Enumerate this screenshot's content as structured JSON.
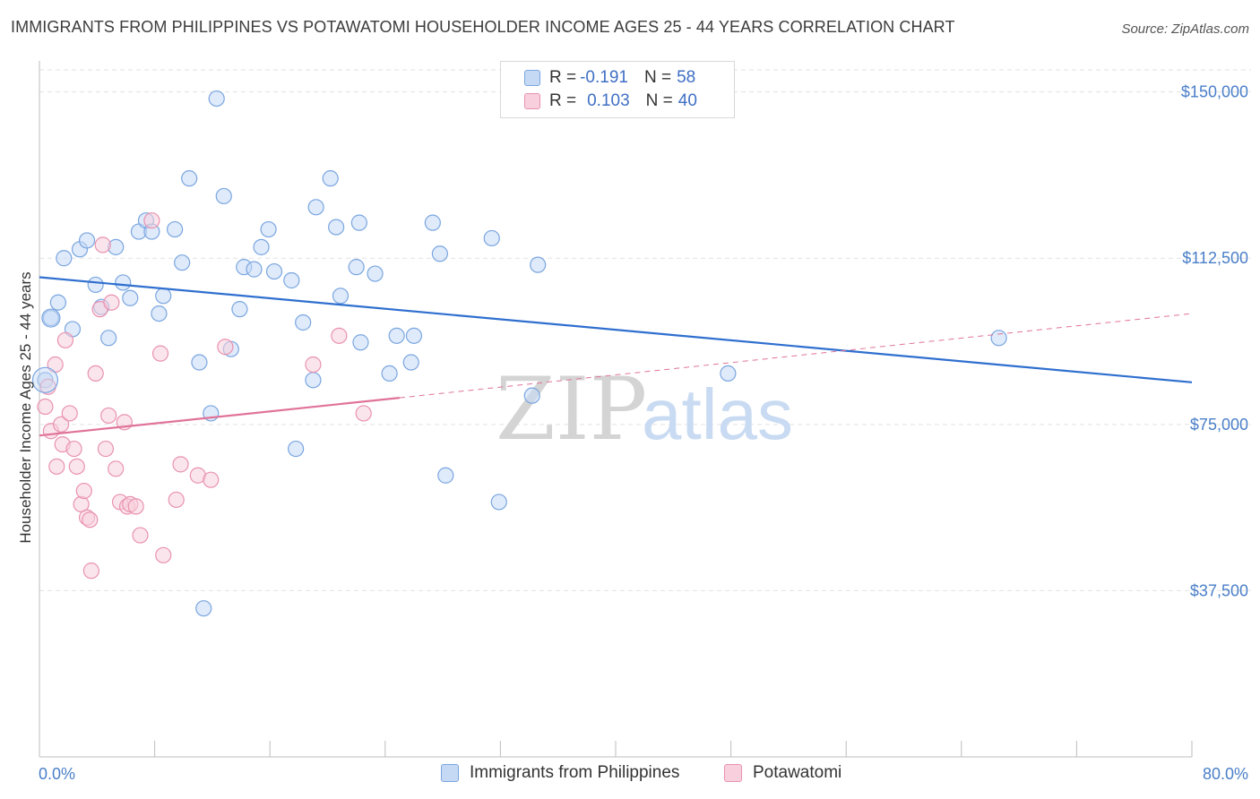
{
  "title": "IMMIGRANTS FROM PHILIPPINES VS POTAWATOMI HOUSEHOLDER INCOME AGES 25 - 44 YEARS CORRELATION CHART",
  "source": "Source: ZipAtlas.com",
  "watermark": {
    "zip": "ZIP",
    "atlas": "atlas"
  },
  "legend": {
    "r_label": "R =",
    "n_label": "N =",
    "series": [
      {
        "name": "Immigrants from Philippines",
        "r": "-0.191",
        "n": "58"
      },
      {
        "name": "Potawatomi",
        "r": "0.103",
        "n": "40"
      }
    ]
  },
  "colors": {
    "blue_fill": "#c5d9f5",
    "blue_stroke": "#7aa6e0",
    "blue_line": "#2f6fcf",
    "pink_fill": "#f8cfdd",
    "pink_stroke": "#e992b0",
    "pink_line": "#e0739a",
    "tick_text": "#4a7fc8",
    "grid": "#e2e2e2"
  },
  "chart_data": {
    "type": "scatter",
    "title": "IMMIGRANTS FROM PHILIPPINES VS POTAWATOMI HOUSEHOLDER INCOME AGES 25 - 44 YEARS CORRELATION CHART",
    "xlabel": "",
    "ylabel": "Householder Income Ages 25 - 44 years",
    "xlim": [
      0,
      80
    ],
    "ylim": [
      0,
      157000
    ],
    "x_tick_labels": [
      "0.0%",
      "80.0%"
    ],
    "y_ticks": [
      37500,
      75000,
      112500,
      150000
    ],
    "y_tick_labels": [
      "$37,500",
      "$75,000",
      "$112,500",
      "$150,000"
    ],
    "grid": true,
    "legend_position": "top-center",
    "series": [
      {
        "name": "Immigrants from Philippines",
        "color": "#7aa6e0",
        "trend": {
          "x": [
            0,
            80
          ],
          "y": [
            108200,
            84500
          ],
          "style": "solid"
        },
        "points": [
          [
            0.4,
            85000
          ],
          [
            0.8,
            99000
          ],
          [
            1.3,
            102500
          ],
          [
            1.7,
            112500
          ],
          [
            2.3,
            96500
          ],
          [
            2.8,
            114500
          ],
          [
            3.3,
            116500
          ],
          [
            3.9,
            106500
          ],
          [
            4.3,
            101500
          ],
          [
            4.8,
            94500
          ],
          [
            5.3,
            115000
          ],
          [
            5.8,
            107000
          ],
          [
            6.3,
            103500
          ],
          [
            6.9,
            118500
          ],
          [
            7.4,
            121000
          ],
          [
            7.8,
            118500
          ],
          [
            8.3,
            100000
          ],
          [
            8.6,
            104000
          ],
          [
            9.4,
            119000
          ],
          [
            9.9,
            111500
          ],
          [
            10.4,
            130500
          ],
          [
            11.1,
            89000
          ],
          [
            11.4,
            33500
          ],
          [
            11.9,
            77500
          ],
          [
            12.3,
            148500
          ],
          [
            12.8,
            126500
          ],
          [
            13.3,
            92000
          ],
          [
            13.9,
            101000
          ],
          [
            14.2,
            110500
          ],
          [
            14.9,
            110000
          ],
          [
            15.4,
            115000
          ],
          [
            15.9,
            119000
          ],
          [
            16.3,
            109500
          ],
          [
            17.5,
            107500
          ],
          [
            17.8,
            69500
          ],
          [
            18.3,
            98000
          ],
          [
            19.0,
            85000
          ],
          [
            19.2,
            124000
          ],
          [
            20.2,
            130500
          ],
          [
            20.6,
            119500
          ],
          [
            20.9,
            104000
          ],
          [
            22.0,
            110500
          ],
          [
            22.2,
            120500
          ],
          [
            22.3,
            93500
          ],
          [
            23.3,
            109000
          ],
          [
            24.3,
            86500
          ],
          [
            24.8,
            95000
          ],
          [
            25.8,
            89000
          ],
          [
            26.0,
            95000
          ],
          [
            27.3,
            120500
          ],
          [
            27.8,
            113500
          ],
          [
            28.2,
            63500
          ],
          [
            31.4,
            117000
          ],
          [
            31.9,
            57500
          ],
          [
            34.2,
            81500
          ],
          [
            34.6,
            111000
          ],
          [
            47.8,
            86500
          ],
          [
            66.6,
            94500
          ]
        ]
      },
      {
        "name": "Potawatomi",
        "color": "#e992b0",
        "trend": {
          "x": [
            0,
            25.0
          ],
          "y": [
            72500,
            81000
          ],
          "style": "solid",
          "extended_x": [
            25.0,
            80
          ],
          "extended_y": [
            81000,
            100000
          ],
          "extended_style": "dashed"
        },
        "points": [
          [
            0.4,
            79000
          ],
          [
            0.6,
            83500
          ],
          [
            0.8,
            73500
          ],
          [
            1.1,
            88500
          ],
          [
            1.2,
            65500
          ],
          [
            1.5,
            75000
          ],
          [
            1.6,
            70500
          ],
          [
            1.8,
            94000
          ],
          [
            2.1,
            77500
          ],
          [
            2.4,
            69500
          ],
          [
            2.6,
            65500
          ],
          [
            2.9,
            57000
          ],
          [
            3.1,
            60000
          ],
          [
            3.3,
            54000
          ],
          [
            3.5,
            53500
          ],
          [
            3.6,
            42000
          ],
          [
            3.9,
            86500
          ],
          [
            4.2,
            101000
          ],
          [
            4.4,
            115500
          ],
          [
            4.6,
            69500
          ],
          [
            4.8,
            77000
          ],
          [
            5.0,
            102500
          ],
          [
            5.3,
            65000
          ],
          [
            5.6,
            57500
          ],
          [
            5.9,
            75500
          ],
          [
            6.1,
            56500
          ],
          [
            6.3,
            57000
          ],
          [
            6.7,
            56500
          ],
          [
            7.0,
            50000
          ],
          [
            7.8,
            121000
          ],
          [
            8.4,
            91000
          ],
          [
            8.6,
            45500
          ],
          [
            9.5,
            58000
          ],
          [
            9.8,
            66000
          ],
          [
            11.0,
            63500
          ],
          [
            11.9,
            62500
          ],
          [
            12.9,
            92500
          ],
          [
            19.0,
            88500
          ],
          [
            20.8,
            95000
          ],
          [
            22.5,
            77500
          ]
        ]
      }
    ]
  }
}
